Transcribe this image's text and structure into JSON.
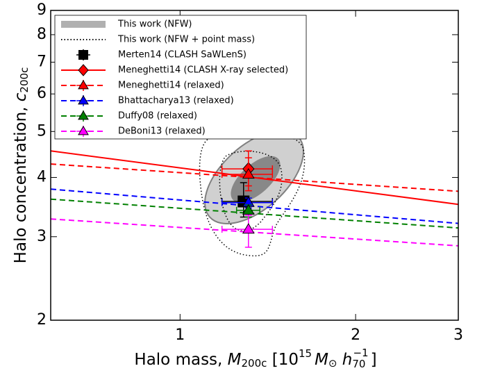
{
  "chart_data": {
    "type": "errorbar",
    "xlabel": [
      "Halo mass, ",
      "M",
      "200c",
      " [10",
      "15",
      "M",
      "⊙",
      " h",
      "70",
      "−1",
      "]"
    ],
    "ylabel": [
      "Halo concentration, ",
      "c",
      "200c"
    ],
    "xscale": "log",
    "yscale": "log",
    "xlim": [
      0.6,
      3
    ],
    "ylim": [
      2,
      9
    ],
    "xticks": [
      1,
      2,
      3
    ],
    "yticks": [
      2,
      3,
      4,
      5,
      6,
      7,
      8,
      9
    ],
    "legend": "upper left",
    "series": [
      {
        "name": "This work (NFW)",
        "color": "#b0b0b0",
        "style": "band"
      },
      {
        "name": "This work (NFW + point mass)",
        "color": "#000000",
        "style": "dotted"
      },
      {
        "name": "Merten14 (CLASH SaWLenS)",
        "color": "#000000",
        "style": "none",
        "marker": "square",
        "point": {
          "x": 1.285,
          "y": 3.56,
          "xrange": [
            1.18,
            1.44
          ],
          "yrange": [
            3.3,
            3.9
          ]
        }
      },
      {
        "name": "Meneghetti14 (CLASH X-ray selected)",
        "color": "#ff0000",
        "style": "solid",
        "marker": "diamond",
        "line": {
          "x": [
            0.6,
            3
          ],
          "y": [
            4.55,
            3.51
          ]
        },
        "point": {
          "x": 1.31,
          "y": 4.17,
          "xrange": [
            1.18,
            1.44
          ],
          "yrange": [
            3.84,
            4.55
          ]
        }
      },
      {
        "name": "Meneghetti14 (relaxed)",
        "color": "#ff0000",
        "style": "dashed",
        "marker": "triangle",
        "line": {
          "x": [
            0.6,
            3
          ],
          "y": [
            4.27,
            3.74
          ]
        },
        "point": {
          "x": 1.31,
          "y": 4.06,
          "xrange": [
            1.18,
            1.44
          ],
          "yrange": [
            3.75,
            4.4
          ]
        }
      },
      {
        "name": "Bhattacharya13 (relaxed)",
        "color": "#0000ff",
        "style": "dashed",
        "marker": "triangle",
        "line": {
          "x": [
            0.6,
            3
          ],
          "y": [
            3.78,
            3.2
          ]
        },
        "point": {
          "x": 1.31,
          "y": 3.54,
          "xrange": [
            1.18,
            1.44
          ],
          "yrange": [
            3.45,
            3.62
          ]
        }
      },
      {
        "name": "Duffy08 (relaxed)",
        "color": "#008000",
        "style": "dashed",
        "marker": "triangle",
        "line": {
          "x": [
            0.6,
            3
          ],
          "y": [
            3.6,
            3.13
          ]
        },
        "point": {
          "x": 1.31,
          "y": 3.41,
          "xrange": [
            1.25,
            1.37
          ],
          "yrange": [
            3.3,
            3.5
          ]
        }
      },
      {
        "name": "DeBoni13 (relaxed)",
        "color": "#ff00ff",
        "style": "dashed",
        "marker": "triangle",
        "line": {
          "x": [
            0.6,
            3
          ],
          "y": [
            3.27,
            2.87
          ]
        },
        "point": {
          "x": 1.31,
          "y": 3.11,
          "xrange": [
            1.18,
            1.44
          ],
          "yrange": [
            2.85,
            3.33
          ]
        }
      }
    ]
  }
}
